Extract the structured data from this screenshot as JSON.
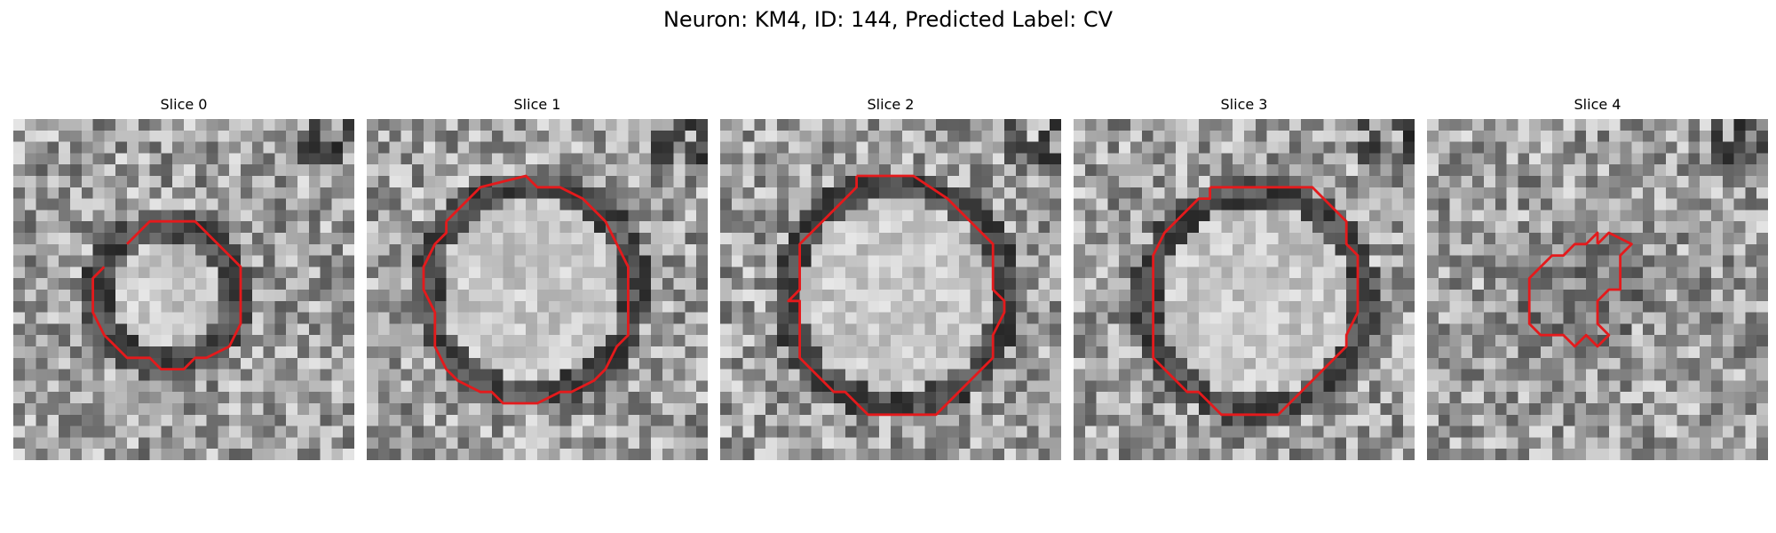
{
  "figure": {
    "title": "Neuron: KM4, ID: 144, Predicted Label: CV"
  },
  "panels": [
    {
      "label": "Slice 0"
    },
    {
      "label": "Slice 1"
    },
    {
      "label": "Slice 2"
    },
    {
      "label": "Slice 3"
    },
    {
      "label": "Slice 4"
    }
  ],
  "colors": {
    "contour": "#e41a1c",
    "colormap": "grayscale"
  }
}
